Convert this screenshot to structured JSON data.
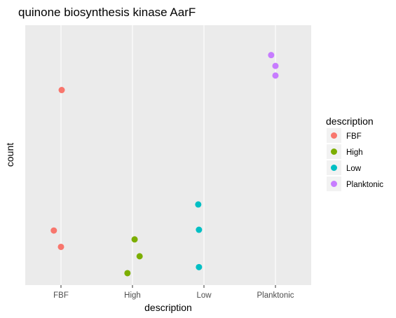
{
  "chart_data": {
    "type": "scatter",
    "title": "quinone biosynthesis kinase AarF",
    "xlabel": "description",
    "ylabel": "count",
    "categories": [
      "FBF",
      "High",
      "Low",
      "Planktonic"
    ],
    "y_axis_ticks_shown": false,
    "grid": true,
    "legend": {
      "title": "description",
      "position": "right",
      "entries": [
        "FBF",
        "High",
        "Low",
        "Planktonic"
      ]
    },
    "series": [
      {
        "name": "FBF",
        "color": "#F8766D",
        "points": [
          {
            "x": "FBF",
            "jitter": 0.01,
            "y": 0.795
          },
          {
            "x": "FBF",
            "jitter": -0.1,
            "y": 0.212
          },
          {
            "x": "FBF",
            "jitter": 0.0,
            "y": 0.144
          }
        ]
      },
      {
        "name": "High",
        "color": "#7CAE00",
        "points": [
          {
            "x": "High",
            "jitter": 0.03,
            "y": 0.175
          },
          {
            "x": "High",
            "jitter": 0.1,
            "y": 0.105
          },
          {
            "x": "High",
            "jitter": -0.07,
            "y": 0.035
          }
        ]
      },
      {
        "name": "Low",
        "color": "#00BFC4",
        "points": [
          {
            "x": "Low",
            "jitter": -0.08,
            "y": 0.32
          },
          {
            "x": "Low",
            "jitter": -0.07,
            "y": 0.215
          },
          {
            "x": "Low",
            "jitter": -0.07,
            "y": 0.06
          }
        ]
      },
      {
        "name": "Planktonic",
        "color": "#C77CFF",
        "points": [
          {
            "x": "Planktonic",
            "jitter": -0.06,
            "y": 0.94
          },
          {
            "x": "Planktonic",
            "jitter": 0.0,
            "y": 0.895
          },
          {
            "x": "Planktonic",
            "jitter": 0.0,
            "y": 0.855
          }
        ]
      }
    ]
  }
}
